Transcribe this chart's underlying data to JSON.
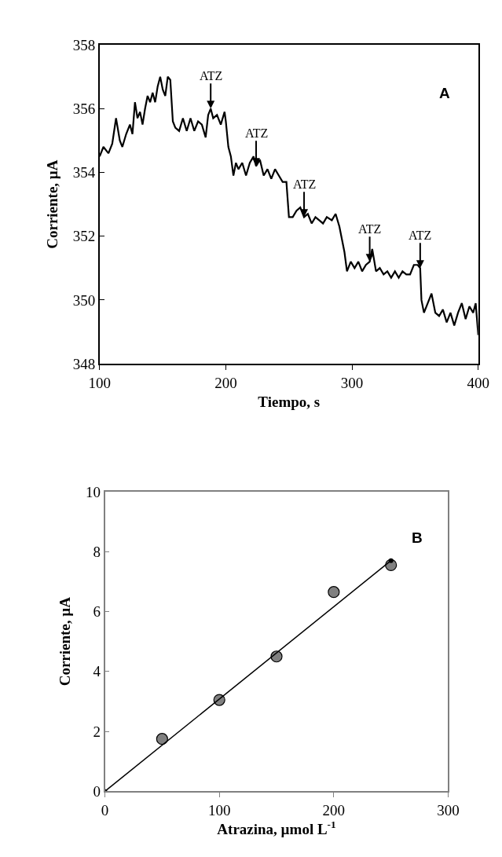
{
  "chart_data": [
    {
      "type": "line",
      "xlabel": "Tiempo, s",
      "ylabel": "Corriente, µA",
      "xlim": [
        100,
        400
      ],
      "ylim": [
        348,
        358
      ],
      "xticks": [
        100,
        200,
        300,
        400
      ],
      "yticks": [
        348,
        350,
        352,
        354,
        356,
        358
      ],
      "marker": "none",
      "line_style": "solid",
      "series": [
        {
          "color": "#000000",
          "x": [
            100,
            103,
            107,
            110,
            113,
            116,
            118,
            121,
            124,
            126,
            128,
            130,
            132,
            134,
            136,
            138,
            140,
            142,
            144,
            146,
            148,
            150,
            152,
            154,
            156,
            158,
            160,
            163,
            166,
            169,
            172,
            175,
            178,
            181,
            184,
            186,
            188,
            190,
            193,
            196,
            199,
            200,
            202,
            204,
            206,
            208,
            210,
            213,
            216,
            219,
            222,
            224,
            227,
            230,
            233,
            236,
            239,
            242,
            245,
            248,
            250,
            253,
            256,
            259,
            262,
            265,
            268,
            271,
            274,
            277,
            280,
            284,
            287,
            290,
            292,
            294,
            296,
            299,
            302,
            305,
            308,
            311,
            314,
            316,
            319,
            322,
            325,
            328,
            331,
            334,
            337,
            340,
            343,
            346,
            349,
            352,
            354,
            355,
            357,
            360,
            363,
            366,
            369,
            372,
            375,
            378,
            381,
            384,
            387,
            390,
            393,
            396,
            398,
            400
          ],
          "values": [
            354.5,
            354.8,
            354.6,
            354.9,
            355.7,
            355.0,
            354.8,
            355.2,
            355.5,
            355.2,
            356.2,
            355.7,
            355.9,
            355.5,
            356.0,
            356.4,
            356.2,
            356.5,
            356.2,
            356.7,
            357.0,
            356.6,
            356.4,
            357.0,
            356.9,
            355.6,
            355.4,
            355.3,
            355.7,
            355.3,
            355.7,
            355.3,
            355.6,
            355.5,
            355.1,
            355.8,
            356.0,
            355.7,
            355.8,
            355.5,
            355.9,
            355.6,
            354.8,
            354.5,
            353.9,
            354.3,
            354.1,
            354.3,
            353.9,
            354.3,
            354.5,
            354.2,
            354.4,
            353.9,
            354.1,
            353.8,
            354.1,
            353.9,
            353.7,
            353.7,
            352.6,
            352.6,
            352.8,
            352.9,
            352.6,
            352.7,
            352.4,
            352.6,
            352.5,
            352.4,
            352.6,
            352.5,
            352.7,
            352.3,
            351.9,
            351.5,
            350.9,
            351.2,
            351.0,
            351.2,
            350.9,
            351.1,
            351.2,
            351.6,
            350.9,
            351.0,
            350.8,
            350.9,
            350.7,
            350.9,
            350.7,
            350.9,
            350.8,
            350.8,
            351.1,
            351.1,
            351.0,
            350.0,
            349.6,
            349.9,
            350.2,
            349.6,
            349.5,
            349.7,
            349.3,
            349.6,
            349.2,
            349.6,
            349.9,
            349.4,
            349.8,
            349.6,
            349.9,
            348.9
          ]
        }
      ],
      "annotations": [
        {
          "text": "ATZ",
          "x": 188,
          "y": 356.0
        },
        {
          "text": "ATZ",
          "x": 224,
          "y": 354.2
        },
        {
          "text": "ATZ",
          "x": 262,
          "y": 352.6
        },
        {
          "text": "ATZ",
          "x": 314,
          "y": 351.2
        },
        {
          "text": "ATZ",
          "x": 354,
          "y": 351.0
        },
        "A"
      ]
    },
    {
      "type": "scatter",
      "xlabel": "Atrazina, µmol L$^{-1}$",
      "ylabel": "Corriente, µA",
      "xlim": [
        0,
        300
      ],
      "ylim": [
        0,
        10
      ],
      "xticks": [
        0,
        100,
        200,
        300
      ],
      "yticks": [
        0,
        2,
        4,
        6,
        8,
        10
      ],
      "marker": "circle",
      "series": [
        {
          "color": "#808080",
          "x": [
            50,
            100,
            150,
            200,
            250
          ],
          "values": [
            1.75,
            3.05,
            4.5,
            6.65,
            7.55
          ]
        },
        {
          "type": "line",
          "color": "#000000",
          "x": [
            0,
            250
          ],
          "values": [
            0,
            7.7
          ]
        }
      ],
      "annotations": [
        "B"
      ]
    }
  ]
}
